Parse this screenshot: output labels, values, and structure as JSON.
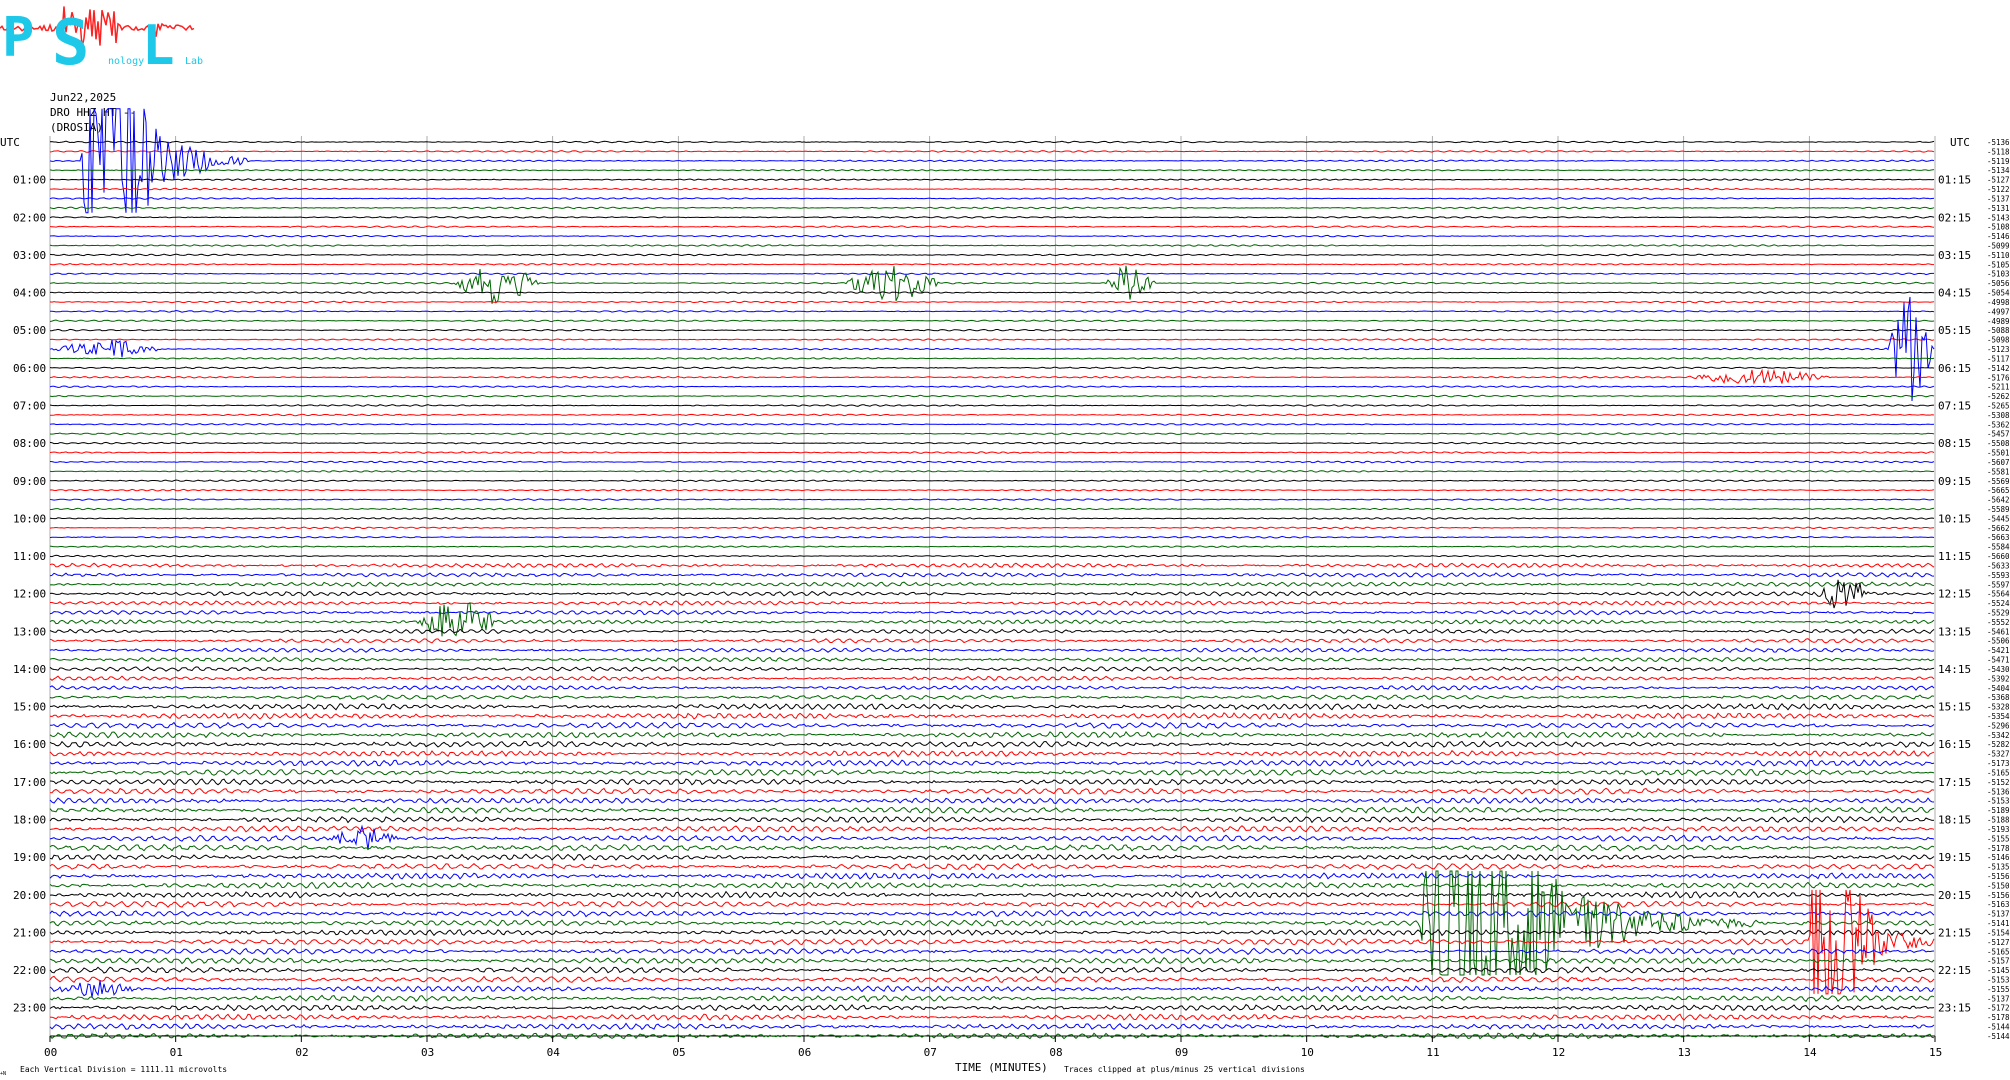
{
  "logo": {
    "letters": [
      "P",
      "S",
      "L"
    ],
    "small_texts": [
      "nology",
      "Lab"
    ],
    "color": "#1ec8e8",
    "trace_color": "#ff2020"
  },
  "header": {
    "date": "Jun22,2025",
    "station": "DRO HHZ HT --",
    "location": "(DROSIA)"
  },
  "axis": {
    "left_title": "UTC",
    "right_title": "UTC",
    "left_hour_labels": [
      "01:00",
      "02:00",
      "03:00",
      "04:00",
      "05:00",
      "06:00",
      "07:00",
      "08:00",
      "09:00",
      "10:00",
      "11:00",
      "12:00",
      "13:00",
      "14:00",
      "15:00",
      "16:00",
      "17:00",
      "18:00",
      "19:00",
      "20:00",
      "21:00",
      "22:00",
      "23:00"
    ],
    "right_hour_labels": [
      "01:15",
      "02:15",
      "03:15",
      "04:15",
      "05:15",
      "06:15",
      "07:15",
      "08:15",
      "09:15",
      "10:15",
      "11:15",
      "12:15",
      "13:15",
      "14:15",
      "15:15",
      "16:15",
      "17:15",
      "18:15",
      "19:15",
      "20:15",
      "21:15",
      "22:15",
      "23:15"
    ],
    "x_tick_labels": [
      "00",
      "01",
      "02",
      "03",
      "04",
      "05",
      "06",
      "07",
      "08",
      "09",
      "10",
      "11",
      "12",
      "13",
      "14",
      "15"
    ],
    "xlabel": "TIME (MINUTES)"
  },
  "footer": {
    "left_note": "Each Vertical Division = 1111.11 microvolts",
    "right_note": "Traces clipped at plus/minus 25 vertical divisions",
    "corner_mark": "+N"
  },
  "chart_data": {
    "type": "line",
    "title": "",
    "station": "DRO HHZ HT --",
    "date": "Jun22,2025",
    "xlabel": "TIME (MINUTES)",
    "ylabel": "UTC",
    "xlim": [
      0,
      15
    ],
    "rows": 96,
    "minutes_per_row": 15,
    "trace_colors": [
      "#000000",
      "#ff0000",
      "#0000ff",
      "#006400"
    ],
    "grid": true,
    "row_means": [
      "-5136",
      "-5118",
      "-5119",
      "-5134",
      "-5127",
      "-5122",
      "-5137",
      "-5131",
      "-5143",
      "-5108",
      "-5146",
      "-5099",
      "-5110",
      "-5105",
      "-5103",
      "-5056",
      "-5054",
      "-4998",
      "-4997",
      "-4989",
      "-5088",
      "-5098",
      "-5123",
      "-5117",
      "-5142",
      "-5176",
      "-5211",
      "-5262",
      "-5265",
      "-5308",
      "-5362",
      "-5457",
      "-5508",
      "-5501",
      "-5607",
      "-5581",
      "-5569",
      "-5665",
      "-5642",
      "-5589",
      "-5445",
      "-5662",
      "-5663",
      "-5584",
      "-5660",
      "-5633",
      "-5593",
      "-5597",
      "-5564",
      "-5524",
      "-5529",
      "-5552",
      "-5461",
      "-5506",
      "-5421",
      "-5471",
      "-5430",
      "-5392",
      "-5404",
      "-5368",
      "-5328",
      "-5354",
      "-5296",
      "-5342",
      "-5282",
      "-5327",
      "-5173",
      "-5165",
      "-5152",
      "-5136",
      "-5153",
      "-5189",
      "-5188",
      "-5193",
      "-5155",
      "-5178",
      "-5146",
      "-5135",
      "-5156",
      "-5150",
      "-5156",
      "-5163",
      "-5137",
      "-5141",
      "-5154",
      "-5127",
      "-5165",
      "-5157",
      "-5145",
      "-5153",
      "-5155",
      "-5137",
      "-5172",
      "-5178",
      "-5144",
      "-5144"
    ],
    "events": [
      {
        "row": 2,
        "start_min": 0.25,
        "end_min": 1.6,
        "peak_amplitude": 25,
        "clipped": true,
        "type": "large"
      },
      {
        "row": 15,
        "start_min": 3.2,
        "end_min": 3.9,
        "peak_amplitude": 2.2,
        "clipped": false,
        "type": "burst"
      },
      {
        "row": 15,
        "start_min": 6.3,
        "end_min": 7.1,
        "peak_amplitude": 2.0,
        "clipped": false,
        "type": "burst"
      },
      {
        "row": 15,
        "start_min": 8.4,
        "end_min": 8.8,
        "peak_amplitude": 2.5,
        "clipped": false,
        "type": "burst"
      },
      {
        "row": 22,
        "start_min": 14.6,
        "end_min": 15.0,
        "peak_amplitude": 6,
        "clipped": false,
        "type": "burst"
      },
      {
        "row": 22,
        "start_min": 0.0,
        "end_min": 0.9,
        "peak_amplitude": 1.0,
        "clipped": false,
        "type": "burst"
      },
      {
        "row": 25,
        "start_min": 13.0,
        "end_min": 14.2,
        "peak_amplitude": 0.8,
        "clipped": false,
        "type": "burst"
      },
      {
        "row": 48,
        "start_min": 14.0,
        "end_min": 14.5,
        "peak_amplitude": 2.0,
        "clipped": false,
        "type": "burst"
      },
      {
        "row": 51,
        "start_min": 2.9,
        "end_min": 3.6,
        "peak_amplitude": 2.2,
        "clipped": false,
        "type": "burst"
      },
      {
        "row": 74,
        "start_min": 2.2,
        "end_min": 2.8,
        "peak_amplitude": 1.3,
        "clipped": false,
        "type": "burst"
      },
      {
        "row": 83,
        "start_min": 10.9,
        "end_min": 13.6,
        "peak_amplitude": 25,
        "clipped": true,
        "type": "large"
      },
      {
        "row": 85,
        "start_min": 14.0,
        "end_min": 15.0,
        "peak_amplitude": 25,
        "clipped": true,
        "type": "large"
      },
      {
        "row": 90,
        "start_min": 0.0,
        "end_min": 0.7,
        "peak_amplitude": 0.8,
        "clipped": false,
        "type": "burst"
      }
    ]
  }
}
